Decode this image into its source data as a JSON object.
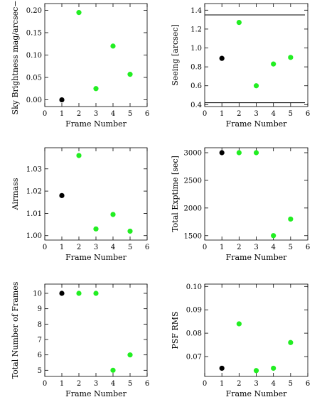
{
  "chart_data": [
    {
      "type": "scatter",
      "xlabel": "Frame Number",
      "ylabel": "Sky Brightness mag/arcsec−2",
      "xlim": [
        0,
        6
      ],
      "ylim": [
        -0.015,
        0.215
      ],
      "xticks": [
        "0",
        "1",
        "2",
        "3",
        "4",
        "5",
        "6"
      ],
      "yticks": [
        {
          "v": 0.0,
          "label": "0.00"
        },
        {
          "v": 0.05,
          "label": "0.05"
        },
        {
          "v": 0.1,
          "label": "0.10"
        },
        {
          "v": 0.15,
          "label": "0.15"
        },
        {
          "v": 0.2,
          "label": "0.20"
        }
      ],
      "points": [
        {
          "x": 1,
          "y": 0.0,
          "color": "#000000"
        },
        {
          "x": 2,
          "y": 0.195,
          "color": "#22ee22"
        },
        {
          "x": 3,
          "y": 0.025,
          "color": "#22ee22"
        },
        {
          "x": 4,
          "y": 0.12,
          "color": "#22ee22"
        },
        {
          "x": 5,
          "y": 0.057,
          "color": "#22ee22"
        }
      ]
    },
    {
      "type": "scatter",
      "xlabel": "Frame Number",
      "ylabel": "Seeing [arcsec]",
      "xlim": [
        0,
        6
      ],
      "ylim": [
        0.38,
        1.47
      ],
      "xticks": [
        "0",
        "1",
        "2",
        "3",
        "4",
        "5",
        "6"
      ],
      "yticks": [
        {
          "v": 0.4,
          "label": "0.4"
        },
        {
          "v": 0.6,
          "label": "0.6"
        },
        {
          "v": 0.8,
          "label": "0.8"
        },
        {
          "v": 1.0,
          "label": "1.0"
        },
        {
          "v": 1.2,
          "label": "1.2"
        },
        {
          "v": 1.4,
          "label": "1.4"
        }
      ],
      "hlines": [
        1.35,
        0.42
      ],
      "points": [
        {
          "x": 1,
          "y": 0.89,
          "color": "#000000"
        },
        {
          "x": 2,
          "y": 1.27,
          "color": "#22ee22"
        },
        {
          "x": 3,
          "y": 0.6,
          "color": "#22ee22"
        },
        {
          "x": 4,
          "y": 0.83,
          "color": "#22ee22"
        },
        {
          "x": 5,
          "y": 0.9,
          "color": "#22ee22"
        }
      ]
    },
    {
      "type": "scatter",
      "xlabel": "Frame Number",
      "ylabel": "Airmass",
      "xlim": [
        0,
        6
      ],
      "ylim": [
        0.998,
        1.0395
      ],
      "xticks": [
        "0",
        "1",
        "2",
        "3",
        "4",
        "5",
        "6"
      ],
      "yticks": [
        {
          "v": 1.0,
          "label": "1.00"
        },
        {
          "v": 1.01,
          "label": "1.01"
        },
        {
          "v": 1.02,
          "label": "1.02"
        },
        {
          "v": 1.03,
          "label": "1.03"
        }
      ],
      "points": [
        {
          "x": 1,
          "y": 1.018,
          "color": "#000000"
        },
        {
          "x": 2,
          "y": 1.036,
          "color": "#22ee22"
        },
        {
          "x": 3,
          "y": 1.003,
          "color": "#22ee22"
        },
        {
          "x": 4,
          "y": 1.0095,
          "color": "#22ee22"
        },
        {
          "x": 5,
          "y": 1.002,
          "color": "#22ee22"
        }
      ]
    },
    {
      "type": "scatter",
      "xlabel": "Frame Number",
      "ylabel": "Total Exptime [sec]",
      "xlim": [
        0,
        6
      ],
      "ylim": [
        1420,
        3090
      ],
      "xticks": [
        "0",
        "1",
        "2",
        "3",
        "4",
        "5",
        "6"
      ],
      "yticks": [
        {
          "v": 1500,
          "label": "1500"
        },
        {
          "v": 2000,
          "label": "2000"
        },
        {
          "v": 2500,
          "label": "2500"
        },
        {
          "v": 3000,
          "label": "3000"
        }
      ],
      "points": [
        {
          "x": 1,
          "y": 3000,
          "color": "#000000"
        },
        {
          "x": 2,
          "y": 3000,
          "color": "#22ee22"
        },
        {
          "x": 3,
          "y": 3000,
          "color": "#22ee22"
        },
        {
          "x": 4,
          "y": 1500,
          "color": "#22ee22"
        },
        {
          "x": 5,
          "y": 1800,
          "color": "#22ee22"
        }
      ]
    },
    {
      "type": "scatter",
      "xlabel": "Frame Number",
      "ylabel": "Total Number of Frames",
      "xlim": [
        0,
        6
      ],
      "ylim": [
        4.6,
        10.6
      ],
      "xticks": [
        "0",
        "1",
        "2",
        "3",
        "4",
        "5",
        "6"
      ],
      "yticks": [
        {
          "v": 5,
          "label": "5"
        },
        {
          "v": 6,
          "label": "6"
        },
        {
          "v": 7,
          "label": "7"
        },
        {
          "v": 8,
          "label": "8"
        },
        {
          "v": 9,
          "label": "9"
        },
        {
          "v": 10,
          "label": "10"
        }
      ],
      "points": [
        {
          "x": 1,
          "y": 10,
          "color": "#000000"
        },
        {
          "x": 2,
          "y": 10,
          "color": "#22ee22"
        },
        {
          "x": 3,
          "y": 10,
          "color": "#22ee22"
        },
        {
          "x": 4,
          "y": 5,
          "color": "#22ee22"
        },
        {
          "x": 5,
          "y": 6,
          "color": "#22ee22"
        }
      ]
    },
    {
      "type": "scatter",
      "xlabel": "Frame Number",
      "ylabel": "PSF RMS",
      "xlim": [
        0,
        6
      ],
      "ylim": [
        0.0615,
        0.101
      ],
      "xticks": [
        "0",
        "1",
        "2",
        "3",
        "4",
        "5",
        "6"
      ],
      "yticks": [
        {
          "v": 0.07,
          "label": "0.07"
        },
        {
          "v": 0.08,
          "label": "0.08"
        },
        {
          "v": 0.09,
          "label": "0.09"
        },
        {
          "v": 0.1,
          "label": "0.10"
        }
      ],
      "points": [
        {
          "x": 1,
          "y": 0.065,
          "color": "#000000"
        },
        {
          "x": 2,
          "y": 0.084,
          "color": "#22ee22"
        },
        {
          "x": 3,
          "y": 0.064,
          "color": "#22ee22"
        },
        {
          "x": 4,
          "y": 0.065,
          "color": "#22ee22"
        },
        {
          "x": 5,
          "y": 0.076,
          "color": "#22ee22"
        }
      ]
    }
  ]
}
